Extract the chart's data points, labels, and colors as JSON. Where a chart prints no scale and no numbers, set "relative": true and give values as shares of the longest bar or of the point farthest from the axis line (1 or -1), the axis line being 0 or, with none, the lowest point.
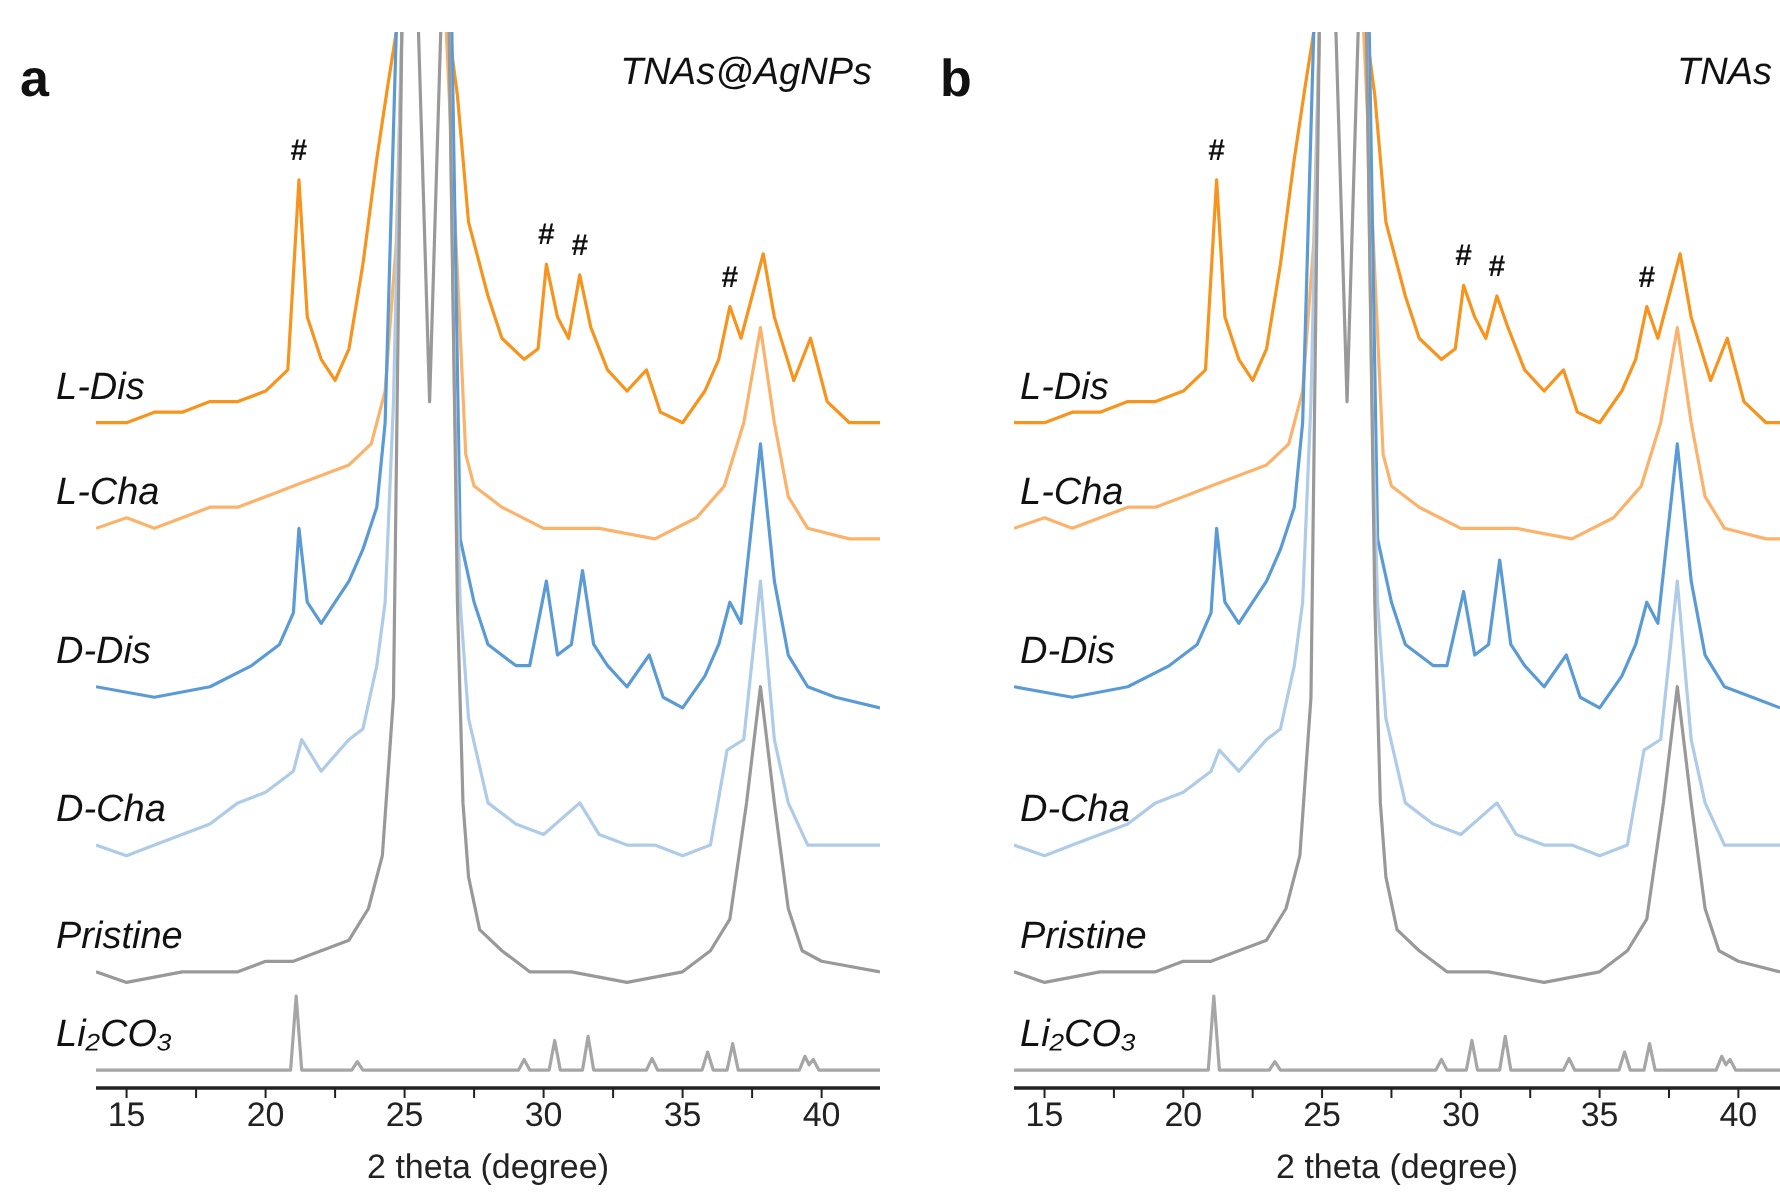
{
  "chart_data": [
    {
      "type": "line",
      "title": "TNAs@AgNPs",
      "xlabel": "2 theta (degree)",
      "relative": true,
      "marker": "none",
      "annotations": [
        "a",
        {
          "text": "#",
          "x": 21.2,
          "y": 0.86
        },
        {
          "text": "#",
          "x": 30.1,
          "y": 0.78
        },
        {
          "text": "#",
          "x": 31.3,
          "y": 0.77
        },
        {
          "text": "#",
          "x": 36.7,
          "y": 0.74
        }
      ],
      "xlim": [
        13.9,
        42.1
      ],
      "xticks": [
        15,
        {
          "value": 17.5,
          "label": null
        },
        20,
        {
          "value": 22.5,
          "label": null
        },
        25,
        {
          "value": 27.5,
          "label": null
        },
        30,
        {
          "value": 32.5,
          "label": null
        },
        35,
        {
          "value": 37.5,
          "label": null
        },
        40
      ],
      "series": [
        {
          "name": "L-Dis",
          "color": "#f7941d",
          "x": [
            13.9,
            15,
            16,
            17,
            18,
            19,
            20,
            20.8,
            21.2,
            21.5,
            22,
            22.5,
            23,
            23.5,
            24,
            24.4,
            24.7,
            25.7,
            26.6,
            26.9,
            27.3,
            28,
            28.5,
            29.3,
            29.8,
            30.1,
            30.5,
            30.9,
            31.3,
            31.7,
            32.3,
            33,
            33.7,
            34.2,
            35,
            35.8,
            36.3,
            36.7,
            37.1,
            37.9,
            38.3,
            39,
            39.6,
            40.2,
            41,
            42.1
          ],
          "values": [
            0.63,
            0.63,
            0.64,
            0.64,
            0.65,
            0.65,
            0.66,
            0.68,
            0.86,
            0.73,
            0.69,
            0.67,
            0.7,
            0.78,
            0.88,
            0.95,
            1,
            null,
            1,
            0.94,
            0.82,
            0.75,
            0.71,
            0.69,
            0.7,
            0.78,
            0.73,
            0.71,
            0.77,
            0.72,
            0.68,
            0.66,
            0.68,
            0.64,
            0.63,
            0.66,
            0.69,
            0.74,
            0.71,
            0.79,
            0.73,
            0.67,
            0.71,
            0.65,
            0.63,
            0.63
          ]
        },
        {
          "name": "L-Cha",
          "color": "#fbb36b",
          "x": [
            13.9,
            15,
            16,
            17,
            18,
            19,
            20,
            21,
            22,
            23,
            23.8,
            24.3,
            24.7,
            24.9,
            25.7,
            26.5,
            27.2,
            27.5,
            28.5,
            30,
            32,
            34,
            35.5,
            36.5,
            37.2,
            37.8,
            38.3,
            38.8,
            39.5,
            41,
            42.1
          ],
          "values": [
            0.53,
            0.54,
            0.53,
            0.54,
            0.55,
            0.55,
            0.56,
            0.57,
            0.58,
            0.59,
            0.61,
            0.66,
            0.8,
            1,
            null,
            1,
            0.6,
            0.57,
            0.55,
            0.53,
            0.53,
            0.52,
            0.54,
            0.57,
            0.63,
            0.72,
            0.63,
            0.56,
            0.53,
            0.52,
            0.52
          ]
        },
        {
          "name": "D-Dis",
          "color": "#5b9bd5",
          "x": [
            13.9,
            16,
            18,
            19.5,
            20.5,
            21,
            21.2,
            21.5,
            22,
            22.5,
            23,
            23.5,
            24,
            24.3,
            24.7,
            25.7,
            26.7,
            27,
            27.5,
            28,
            29,
            29.5,
            30.1,
            30.5,
            31,
            31.4,
            31.8,
            32.3,
            33,
            33.8,
            34.3,
            35,
            35.8,
            36.3,
            36.7,
            37.1,
            37.8,
            38.3,
            38.8,
            39.5,
            40.5,
            42.1
          ],
          "values": [
            0.38,
            0.37,
            0.38,
            0.4,
            0.42,
            0.45,
            0.53,
            0.46,
            0.44,
            0.46,
            0.48,
            0.51,
            0.55,
            0.63,
            1,
            null,
            1,
            0.52,
            0.46,
            0.42,
            0.4,
            0.4,
            0.48,
            0.41,
            0.42,
            0.49,
            0.42,
            0.4,
            0.38,
            0.41,
            0.37,
            0.36,
            0.39,
            0.42,
            0.46,
            0.44,
            0.61,
            0.48,
            0.41,
            0.38,
            0.37,
            0.36
          ]
        },
        {
          "name": "D-Cha",
          "color": "#aecbe8",
          "x": [
            13.9,
            15,
            16,
            17,
            18,
            19,
            20,
            21,
            21.3,
            22,
            23,
            23.5,
            24,
            24.3,
            24.6,
            24.9,
            25.7,
            26.6,
            26.8,
            27,
            27.3,
            28,
            29,
            30,
            31.3,
            32,
            33,
            34,
            35,
            36,
            36.6,
            37.2,
            37.8,
            38.3,
            38.8,
            39.5,
            41,
            42.1
          ],
          "values": [
            0.23,
            0.22,
            0.23,
            0.24,
            0.25,
            0.27,
            0.28,
            0.3,
            0.33,
            0.3,
            0.33,
            0.34,
            0.4,
            0.46,
            0.65,
            1,
            null,
            1,
            0.65,
            0.46,
            0.35,
            0.27,
            0.25,
            0.24,
            0.27,
            0.24,
            0.23,
            0.23,
            0.22,
            0.23,
            0.32,
            0.33,
            0.48,
            0.33,
            0.27,
            0.23,
            0.23,
            0.23
          ]
        },
        {
          "name": "Pristine",
          "color": "#999999",
          "x": [
            13.9,
            15,
            17,
            19,
            20,
            21,
            22,
            23,
            23.7,
            24.2,
            24.6,
            24.9,
            25.2,
            25.5,
            25.9,
            26.3,
            26.45,
            26.6,
            26.9,
            27.1,
            27.3,
            27.7,
            28.5,
            29.5,
            31,
            33,
            35,
            36,
            36.7,
            37.3,
            37.8,
            38.3,
            38.8,
            39.3,
            40,
            42.1
          ],
          "values": [
            0.11,
            0.1,
            0.11,
            0.11,
            0.12,
            0.12,
            0.13,
            0.14,
            0.17,
            0.22,
            0.37,
            1,
            null,
            1,
            0.65,
            1,
            null,
            1,
            0.46,
            0.27,
            0.2,
            0.15,
            0.13,
            0.11,
            0.11,
            0.1,
            0.11,
            0.13,
            0.16,
            0.27,
            0.38,
            0.27,
            0.17,
            0.13,
            0.12,
            0.11
          ]
        },
        {
          "name": "Li₂CO₃",
          "color": "#a6a6a6",
          "x": [
            13.9,
            20.9,
            21.1,
            21.3,
            23.1,
            23.3,
            23.5,
            29.1,
            29.3,
            29.5,
            30.2,
            30.4,
            30.6,
            31.4,
            31.6,
            31.8,
            33.7,
            33.9,
            34.1,
            35.7,
            35.9,
            36.1,
            36.6,
            36.8,
            37.0,
            39.2,
            39.4,
            39.55,
            39.7,
            39.9,
            42.1
          ],
          "values": [
            0.017,
            0.017,
            0.087,
            0.017,
            0.017,
            0.025,
            0.017,
            0.017,
            0.027,
            0.017,
            0.017,
            0.045,
            0.017,
            0.017,
            0.049,
            0.017,
            0.017,
            0.028,
            0.017,
            0.017,
            0.034,
            0.017,
            0.017,
            0.042,
            0.017,
            0.017,
            0.03,
            0.022,
            0.027,
            0.017,
            0.017
          ]
        }
      ]
    },
    {
      "type": "line",
      "title": "TNAs",
      "xlabel": "2 theta (degree)",
      "relative": true,
      "marker": "none",
      "annotations": [
        "b",
        {
          "text": "#",
          "x": 21.2,
          "y": 0.86
        },
        {
          "text": "#",
          "x": 30.1,
          "y": 0.76
        },
        {
          "text": "#",
          "x": 31.3,
          "y": 0.75
        },
        {
          "text": "#",
          "x": 36.7,
          "y": 0.74
        }
      ],
      "xlim": [
        13.9,
        41.5
      ],
      "xticks": [
        15,
        {
          "value": 17.5,
          "label": null
        },
        20,
        {
          "value": 22.5,
          "label": null
        },
        25,
        {
          "value": 27.5,
          "label": null
        },
        30,
        {
          "value": 32.5,
          "label": null
        },
        35,
        {
          "value": 37.5,
          "label": null
        },
        40
      ],
      "series": [
        {
          "name": "L-Dis",
          "color": "#f7941d",
          "x": [
            13.9,
            15,
            16,
            17,
            18,
            19,
            20,
            20.8,
            21.2,
            21.5,
            22,
            22.5,
            23,
            23.5,
            24,
            24.4,
            24.7,
            25.7,
            26.6,
            26.9,
            27.3,
            28,
            28.5,
            29.3,
            29.8,
            30.1,
            30.5,
            30.9,
            31.3,
            31.7,
            32.3,
            33,
            33.7,
            34.2,
            35,
            35.8,
            36.3,
            36.7,
            37.1,
            37.9,
            38.3,
            39,
            39.6,
            40.2,
            41,
            41.5
          ],
          "values": [
            0.63,
            0.63,
            0.64,
            0.64,
            0.65,
            0.65,
            0.66,
            0.68,
            0.86,
            0.73,
            0.69,
            0.67,
            0.7,
            0.78,
            0.88,
            0.95,
            1,
            null,
            1,
            0.94,
            0.82,
            0.75,
            0.71,
            0.69,
            0.7,
            0.76,
            0.73,
            0.71,
            0.75,
            0.72,
            0.68,
            0.66,
            0.68,
            0.64,
            0.63,
            0.66,
            0.69,
            0.74,
            0.71,
            0.79,
            0.73,
            0.67,
            0.71,
            0.65,
            0.63,
            0.63
          ]
        },
        {
          "name": "L-Cha",
          "color": "#fbb36b",
          "x": [
            13.9,
            15,
            16,
            17,
            18,
            19,
            20,
            21,
            22,
            23,
            23.8,
            24.3,
            24.7,
            24.9,
            25.7,
            26.5,
            27.2,
            27.5,
            28.5,
            30,
            32,
            34,
            35.5,
            36.5,
            37.2,
            37.8,
            38.3,
            38.8,
            39.5,
            41,
            41.5
          ],
          "values": [
            0.53,
            0.54,
            0.53,
            0.54,
            0.55,
            0.55,
            0.56,
            0.57,
            0.58,
            0.59,
            0.61,
            0.66,
            0.8,
            1,
            null,
            1,
            0.6,
            0.57,
            0.55,
            0.53,
            0.53,
            0.52,
            0.54,
            0.57,
            0.63,
            0.72,
            0.63,
            0.56,
            0.53,
            0.52,
            0.52
          ]
        },
        {
          "name": "D-Dis",
          "color": "#5b9bd5",
          "x": [
            13.9,
            16,
            18,
            19.5,
            20.5,
            21,
            21.2,
            21.5,
            22,
            22.5,
            23,
            23.5,
            24,
            24.3,
            24.7,
            25.7,
            26.7,
            27,
            27.5,
            28,
            29,
            29.5,
            30.1,
            30.5,
            31,
            31.4,
            31.8,
            32.3,
            33,
            33.8,
            34.3,
            35,
            35.8,
            36.3,
            36.7,
            37.1,
            37.8,
            38.3,
            38.8,
            39.5,
            40.5,
            41.5
          ],
          "values": [
            0.38,
            0.37,
            0.38,
            0.4,
            0.42,
            0.45,
            0.53,
            0.46,
            0.44,
            0.46,
            0.48,
            0.51,
            0.55,
            0.63,
            1,
            null,
            1,
            0.52,
            0.46,
            0.42,
            0.4,
            0.4,
            0.47,
            0.41,
            0.42,
            0.5,
            0.42,
            0.4,
            0.38,
            0.41,
            0.37,
            0.36,
            0.39,
            0.42,
            0.46,
            0.44,
            0.61,
            0.48,
            0.41,
            0.38,
            0.37,
            0.36
          ]
        },
        {
          "name": "D-Cha",
          "color": "#aecbe8",
          "x": [
            13.9,
            15,
            16,
            17,
            18,
            19,
            20,
            21,
            21.3,
            22,
            23,
            23.5,
            24,
            24.3,
            24.6,
            24.9,
            25.7,
            26.6,
            26.8,
            27,
            27.3,
            28,
            29,
            30,
            31.3,
            32,
            33,
            34,
            35,
            36,
            36.6,
            37.2,
            37.8,
            38.3,
            38.8,
            39.5,
            41,
            41.5
          ],
          "values": [
            0.23,
            0.22,
            0.23,
            0.24,
            0.25,
            0.27,
            0.28,
            0.3,
            0.32,
            0.3,
            0.33,
            0.34,
            0.4,
            0.46,
            0.65,
            1,
            null,
            1,
            0.65,
            0.46,
            0.35,
            0.27,
            0.25,
            0.24,
            0.27,
            0.24,
            0.23,
            0.23,
            0.22,
            0.23,
            0.32,
            0.33,
            0.48,
            0.33,
            0.27,
            0.23,
            0.23,
            0.23
          ]
        },
        {
          "name": "Pristine",
          "color": "#999999",
          "x": [
            13.9,
            15,
            17,
            19,
            20,
            21,
            22,
            23,
            23.7,
            24.2,
            24.6,
            24.9,
            25.2,
            25.5,
            25.9,
            26.3,
            26.45,
            26.6,
            26.9,
            27.1,
            27.3,
            27.7,
            28.5,
            29.5,
            31,
            33,
            35,
            36,
            36.7,
            37.3,
            37.8,
            38.3,
            38.8,
            39.3,
            40,
            41.5
          ],
          "values": [
            0.11,
            0.1,
            0.11,
            0.11,
            0.12,
            0.12,
            0.13,
            0.14,
            0.17,
            0.22,
            0.37,
            1,
            null,
            1,
            0.65,
            1,
            null,
            1,
            0.46,
            0.27,
            0.2,
            0.15,
            0.13,
            0.11,
            0.11,
            0.1,
            0.11,
            0.13,
            0.16,
            0.27,
            0.38,
            0.27,
            0.17,
            0.13,
            0.12,
            0.11
          ]
        },
        {
          "name": "Li₂CO₃",
          "color": "#a6a6a6",
          "x": [
            13.9,
            20.9,
            21.1,
            21.3,
            23.1,
            23.3,
            23.5,
            29.1,
            29.3,
            29.5,
            30.2,
            30.4,
            30.6,
            31.4,
            31.6,
            31.8,
            33.7,
            33.9,
            34.1,
            35.7,
            35.9,
            36.1,
            36.6,
            36.8,
            37.0,
            39.2,
            39.4,
            39.55,
            39.7,
            39.9,
            41.5
          ],
          "values": [
            0.017,
            0.017,
            0.087,
            0.017,
            0.017,
            0.025,
            0.017,
            0.017,
            0.027,
            0.017,
            0.017,
            0.045,
            0.017,
            0.017,
            0.049,
            0.017,
            0.017,
            0.028,
            0.017,
            0.017,
            0.034,
            0.017,
            0.017,
            0.042,
            0.017,
            0.017,
            0.03,
            0.022,
            0.027,
            0.017,
            0.017
          ]
        }
      ]
    }
  ]
}
